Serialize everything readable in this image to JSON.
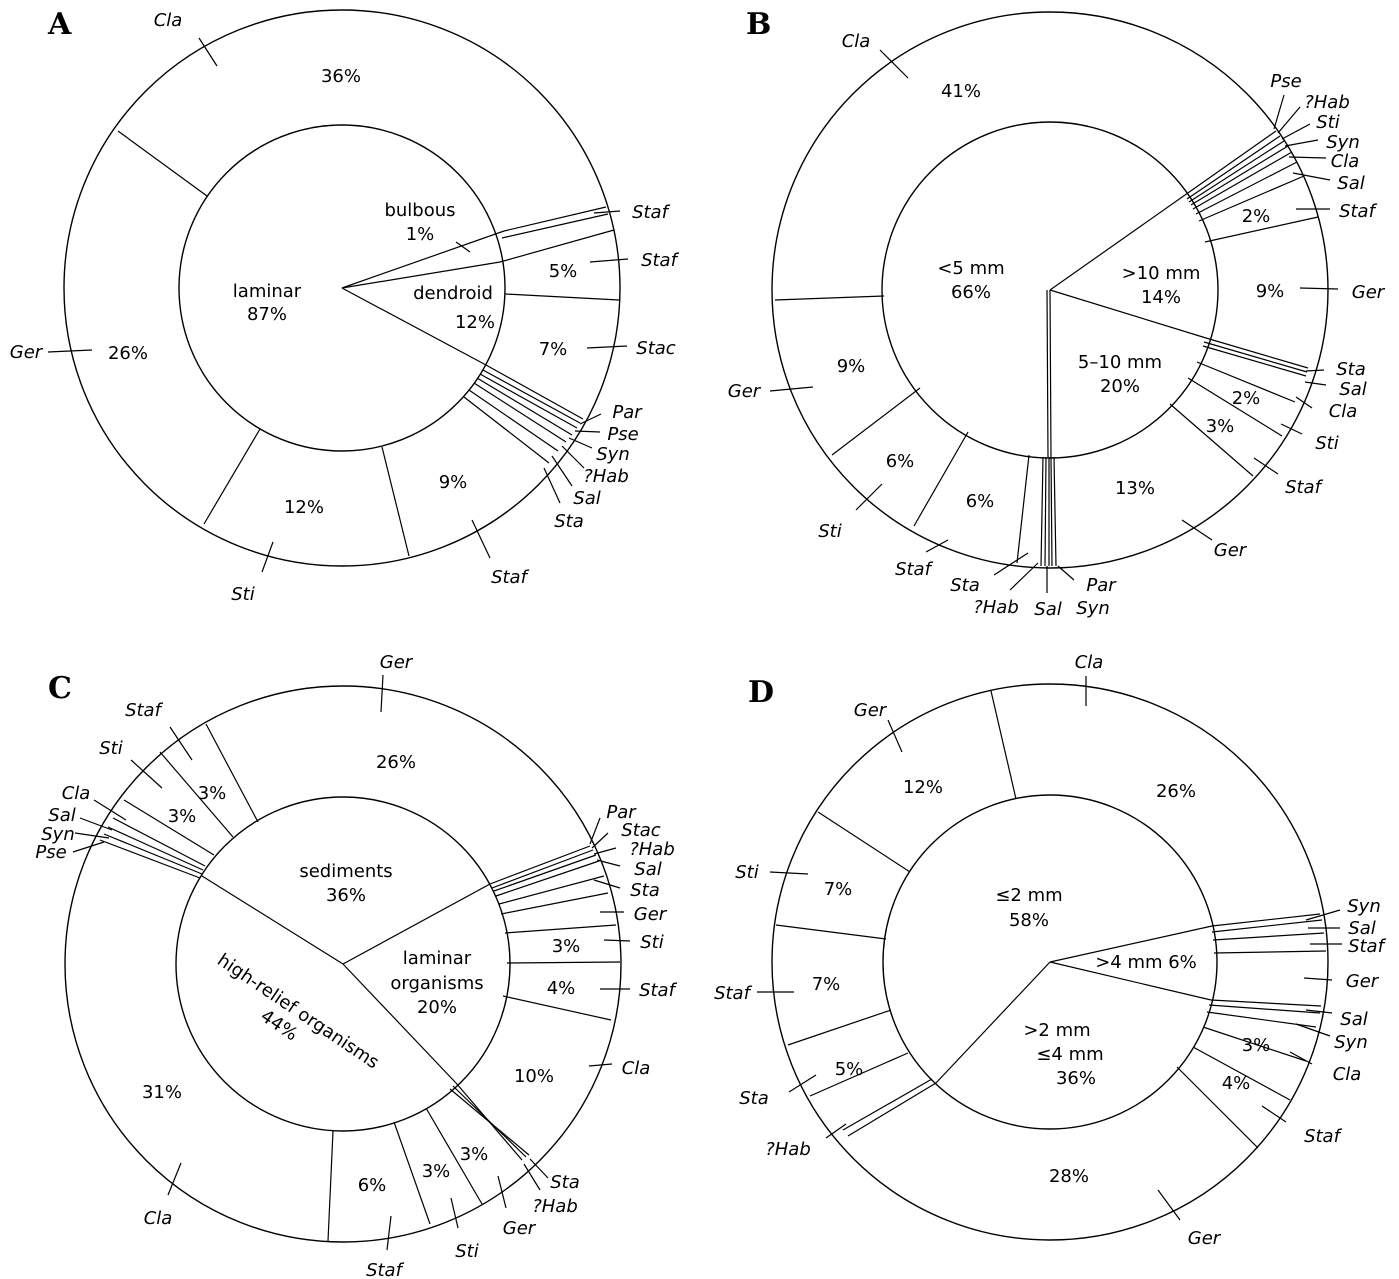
{
  "chart_data": [
    {
      "type": "pie",
      "panel": "A",
      "inner": [
        {
          "label": "laminar",
          "pct": "87%",
          "value": 87
        },
        {
          "label": "bulbous",
          "pct": "1%",
          "value": 1
        },
        {
          "label": "dendroid",
          "pct": "12%",
          "value": 12
        }
      ],
      "outer": [
        {
          "taxon": "Cla",
          "pct": "36%",
          "value": 36
        },
        {
          "taxon": "Ger",
          "pct": "26%",
          "value": 26
        },
        {
          "taxon": "Sti",
          "pct": "12%",
          "value": 12
        },
        {
          "taxon": "Staf",
          "pct": "9%",
          "value": 9
        },
        {
          "taxon": "Sta",
          "pct": "",
          "value": 0.5
        },
        {
          "taxon": "Sal",
          "pct": "",
          "value": 0.5
        },
        {
          "taxon": "?Hab",
          "pct": "",
          "value": 0.5
        },
        {
          "taxon": "Syn",
          "pct": "",
          "value": 0.5
        },
        {
          "taxon": "Pse",
          "pct": "",
          "value": 0.5
        },
        {
          "taxon": "Par",
          "pct": "",
          "value": 0.5
        },
        {
          "taxon": "Stac",
          "pct": "7%",
          "value": 7
        },
        {
          "taxon": "Staf",
          "pct": "5%",
          "value": 5
        },
        {
          "taxon": "Staf",
          "pct": "",
          "value": 1
        }
      ]
    },
    {
      "type": "pie",
      "panel": "B",
      "inner": [
        {
          "label": "<5 mm",
          "pct": "66%",
          "value": 66
        },
        {
          "label": "5–10 mm",
          "pct": "20%",
          "value": 20
        },
        {
          "label": ">10 mm",
          "pct": "14%",
          "value": 14
        }
      ],
      "outer": [
        {
          "taxon": "Cla",
          "pct": "41%",
          "value": 41
        },
        {
          "taxon": "Ger",
          "pct": "9%",
          "value": 9
        },
        {
          "taxon": "Sti",
          "pct": "6%",
          "value": 6
        },
        {
          "taxon": "Staf",
          "pct": "6%",
          "value": 6
        },
        {
          "taxon": "Sta",
          "pct": "",
          "value": 1
        },
        {
          "taxon": "?Hab",
          "pct": "",
          "value": 0.5
        },
        {
          "taxon": "Sal",
          "pct": "",
          "value": 0.5
        },
        {
          "taxon": "Par",
          "pct": "",
          "value": 0.3
        },
        {
          "taxon": "Syn",
          "pct": "",
          "value": 0.3
        },
        {
          "taxon": "Ger",
          "pct": "13%",
          "value": 13
        },
        {
          "taxon": "Staf",
          "pct": "3%",
          "value": 3
        },
        {
          "taxon": "Sti",
          "pct": "2%",
          "value": 2
        },
        {
          "taxon": "Cla",
          "pct": "",
          "value": 0.4
        },
        {
          "taxon": "Sal",
          "pct": "",
          "value": 0.3
        },
        {
          "taxon": "Sta",
          "pct": "",
          "value": 0.3
        },
        {
          "taxon": "Ger",
          "pct": "9%",
          "value": 9
        },
        {
          "taxon": "Staf",
          "pct": "2%",
          "value": 2
        },
        {
          "taxon": "Sal",
          "pct": "",
          "value": 0.5
        },
        {
          "taxon": "Cla",
          "pct": "",
          "value": 0.4
        },
        {
          "taxon": "Syn",
          "pct": "",
          "value": 0.3
        },
        {
          "taxon": "Sti",
          "pct": "",
          "value": 0.3
        },
        {
          "taxon": "?Hab",
          "pct": "",
          "value": 0.3
        },
        {
          "taxon": "Pse",
          "pct": "",
          "value": 0.2
        }
      ]
    },
    {
      "type": "pie",
      "panel": "C",
      "inner": [
        {
          "label": "sediments",
          "pct": "36%",
          "value": 36
        },
        {
          "label": "high-relief organisms",
          "pct": "44%",
          "value": 44
        },
        {
          "label": "laminar organisms",
          "pct": "20%",
          "value": 20
        }
      ],
      "outer": [
        {
          "taxon": "Ger",
          "pct": "26%",
          "value": 26
        },
        {
          "taxon": "Staf",
          "pct": "3%",
          "value": 3
        },
        {
          "taxon": "Sti",
          "pct": "3%",
          "value": 3
        },
        {
          "taxon": "Cla",
          "pct": "",
          "value": 1.5
        },
        {
          "taxon": "Sal",
          "pct": "",
          "value": 0.4
        },
        {
          "taxon": "Syn",
          "pct": "",
          "value": 0.4
        },
        {
          "taxon": "Pse",
          "pct": "",
          "value": 0.4
        },
        {
          "taxon": "Cla",
          "pct": "31%",
          "value": 31
        },
        {
          "taxon": "Staf",
          "pct": "6%",
          "value": 6
        },
        {
          "taxon": "Sti",
          "pct": "3%",
          "value": 3
        },
        {
          "taxon": "Ger",
          "pct": "3%",
          "value": 3
        },
        {
          "taxon": "?Hab",
          "pct": "",
          "value": 0.3
        },
        {
          "taxon": "Sta",
          "pct": "",
          "value": 0.3
        },
        {
          "taxon": "Cla",
          "pct": "10%",
          "value": 10
        },
        {
          "taxon": "Staf",
          "pct": "4%",
          "value": 4
        },
        {
          "taxon": "Sti",
          "pct": "3%",
          "value": 3
        },
        {
          "taxon": "Ger",
          "pct": "",
          "value": 1.5
        },
        {
          "taxon": "Sta",
          "pct": "",
          "value": 0.5
        },
        {
          "taxon": "Sal",
          "pct": "",
          "value": 0.5
        },
        {
          "taxon": "?Hab",
          "pct": "",
          "value": 0.3
        },
        {
          "taxon": "Stac",
          "pct": "",
          "value": 0.3
        },
        {
          "taxon": "Par",
          "pct": "",
          "value": 0.3
        }
      ]
    },
    {
      "type": "pie",
      "panel": "D",
      "inner": [
        {
          "label": "≤2 mm",
          "pct": "58%",
          "value": 58
        },
        {
          "label": ">2 mm ≤4 mm",
          "pct": "36%",
          "value": 36
        },
        {
          "label": ">4 mm",
          "pct": "6%",
          "value": 6
        }
      ],
      "outer": [
        {
          "taxon": "Cla",
          "pct": "26%",
          "value": 26
        },
        {
          "taxon": "Ger",
          "pct": "12%",
          "value": 12
        },
        {
          "taxon": "Sti",
          "pct": "7%",
          "value": 7
        },
        {
          "taxon": "Staf",
          "pct": "7%",
          "value": 7
        },
        {
          "taxon": "Sta",
          "pct": "5%",
          "value": 5
        },
        {
          "taxon": "?Hab",
          "pct": "",
          "value": 1
        },
        {
          "taxon": "Ger",
          "pct": "28%",
          "value": 28
        },
        {
          "taxon": "Staf",
          "pct": "4%",
          "value": 4
        },
        {
          "taxon": "Cla",
          "pct": "3%",
          "value": 3
        },
        {
          "taxon": "Syn",
          "pct": "",
          "value": 0.5
        },
        {
          "taxon": "Sal",
          "pct": "",
          "value": 0.5
        },
        {
          "taxon": "Ger",
          "pct": "",
          "value": 4
        },
        {
          "taxon": "Staf",
          "pct": "",
          "value": 0.5
        },
        {
          "taxon": "Sal",
          "pct": "",
          "value": 0.5
        },
        {
          "taxon": "Syn",
          "pct": "",
          "value": 0.5
        }
      ]
    }
  ]
}
